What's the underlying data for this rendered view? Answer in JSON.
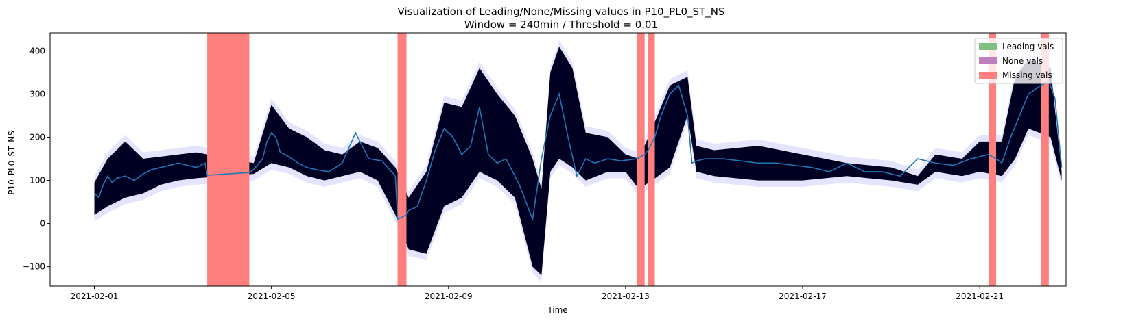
{
  "chart_data": {
    "type": "line",
    "title": "Visualization of Leading/None/Missing values in P10_PL0_ST_NS",
    "subtitle": "Window = 240min / Threshold = 0.01",
    "xlabel": "Time",
    "ylabel": "P10_PL0_ST_NS",
    "x_tick_labels": [
      "2021-02-01",
      "2021-02-05",
      "2021-02-09",
      "2021-02-13",
      "2021-02-17",
      "2021-02-21"
    ],
    "x_tick_days": [
      1,
      5,
      9,
      13,
      17,
      21
    ],
    "xlim_days": [
      0,
      22.95
    ],
    "ylim": [
      -145,
      442
    ],
    "y_ticks": [
      -100,
      0,
      100,
      200,
      300,
      400
    ],
    "y_tick_labels": [
      "−100",
      "0",
      "100",
      "200",
      "300",
      "400"
    ],
    "legend": {
      "placement": "top-right",
      "entries": [
        {
          "label": "Leading vals",
          "color": "#7fbf7f"
        },
        {
          "label": "None vals",
          "color": "#bf7fbf"
        },
        {
          "label": "Missing vals",
          "color": "#ff7f7f"
        }
      ]
    },
    "colors": {
      "raw": "#000022",
      "rolling_mean": "#1f77b4",
      "band": "#d8d8ff",
      "missing": "#ff7f7f"
    },
    "missing_spans_days": [
      [
        3.55,
        4.5
      ],
      [
        7.85,
        8.05
      ],
      [
        13.25,
        13.43
      ],
      [
        13.51,
        13.66
      ],
      [
        21.2,
        21.37
      ],
      [
        22.38,
        22.56
      ]
    ],
    "series": [
      {
        "name": "Rolling mean",
        "x_days": [
          1.0,
          1.1,
          1.2,
          1.3,
          1.4,
          1.5,
          1.7,
          1.9,
          2.1,
          2.3,
          2.5,
          2.7,
          2.9,
          3.1,
          3.3,
          3.5,
          3.55,
          4.5,
          4.6,
          4.8,
          4.9,
          5.0,
          5.1,
          5.2,
          5.4,
          5.6,
          5.8,
          6.0,
          6.3,
          6.6,
          6.9,
          7.2,
          7.5,
          7.8,
          7.85,
          8.05,
          8.1,
          8.3,
          8.5,
          8.7,
          8.9,
          9.1,
          9.3,
          9.5,
          9.7,
          9.9,
          10.1,
          10.3,
          10.6,
          10.9,
          11.1,
          11.3,
          11.5,
          11.7,
          11.9,
          12.1,
          12.3,
          12.6,
          12.9,
          13.25,
          13.43,
          13.51,
          13.66,
          13.8,
          14.0,
          14.2,
          14.4,
          14.5,
          14.6,
          14.8,
          15.2,
          15.6,
          16.0,
          16.4,
          16.8,
          17.2,
          17.6,
          18.0,
          18.4,
          18.8,
          19.2,
          19.6,
          20.0,
          20.4,
          20.8,
          21.2,
          21.37,
          21.5,
          21.7,
          21.9,
          22.1,
          22.38,
          22.56,
          22.7,
          22.85
        ],
        "y": [
          70,
          60,
          90,
          110,
          95,
          105,
          110,
          100,
          115,
          125,
          130,
          135,
          140,
          135,
          130,
          140,
          112,
          118,
          125,
          150,
          190,
          210,
          200,
          165,
          155,
          140,
          130,
          125,
          120,
          140,
          210,
          150,
          145,
          110,
          10,
          20,
          30,
          40,
          100,
          170,
          220,
          200,
          160,
          180,
          270,
          160,
          140,
          150,
          90,
          10,
          150,
          250,
          300,
          200,
          110,
          150,
          140,
          150,
          145,
          150,
          160,
          170,
          200,
          250,
          300,
          320,
          250,
          140,
          145,
          150,
          150,
          145,
          140,
          140,
          135,
          130,
          120,
          140,
          120,
          120,
          110,
          150,
          140,
          135,
          150,
          160,
          150,
          140,
          200,
          250,
          300,
          320,
          330,
          290,
          130
        ]
      },
      {
        "name": "Raw values",
        "note": "dense band of raw observations; given as [x_day, low, high] envelope",
        "envelope_days": [
          [
            1.0,
            20,
            95
          ],
          [
            1.3,
            40,
            150
          ],
          [
            1.7,
            60,
            190
          ],
          [
            2.1,
            70,
            150
          ],
          [
            2.5,
            90,
            155
          ],
          [
            2.9,
            100,
            160
          ],
          [
            3.3,
            105,
            165
          ],
          [
            4.6,
            115,
            140
          ],
          [
            5.0,
            140,
            275
          ],
          [
            5.4,
            130,
            220
          ],
          [
            5.8,
            110,
            200
          ],
          [
            6.2,
            100,
            170
          ],
          [
            6.6,
            110,
            160
          ],
          [
            7.0,
            120,
            190
          ],
          [
            7.4,
            100,
            175
          ],
          [
            7.8,
            20,
            130
          ],
          [
            8.1,
            -60,
            60
          ],
          [
            8.5,
            -70,
            120
          ],
          [
            8.9,
            40,
            280
          ],
          [
            9.3,
            60,
            270
          ],
          [
            9.7,
            120,
            360
          ],
          [
            10.1,
            100,
            300
          ],
          [
            10.5,
            60,
            250
          ],
          [
            10.9,
            -100,
            150
          ],
          [
            11.1,
            -120,
            80
          ],
          [
            11.3,
            120,
            350
          ],
          [
            11.5,
            150,
            410
          ],
          [
            11.8,
            130,
            360
          ],
          [
            12.1,
            100,
            210
          ],
          [
            12.6,
            120,
            200
          ],
          [
            13.0,
            120,
            160
          ],
          [
            13.3,
            80,
            150
          ],
          [
            13.6,
            100,
            220
          ],
          [
            14.0,
            130,
            320
          ],
          [
            14.4,
            250,
            340
          ],
          [
            14.6,
            120,
            180
          ],
          [
            15.0,
            110,
            170
          ],
          [
            16.0,
            100,
            180
          ],
          [
            17.0,
            100,
            160
          ],
          [
            18.0,
            110,
            140
          ],
          [
            19.0,
            100,
            130
          ],
          [
            19.6,
            90,
            110
          ],
          [
            20.0,
            120,
            160
          ],
          [
            20.6,
            110,
            150
          ],
          [
            21.0,
            120,
            190
          ],
          [
            21.5,
            110,
            190
          ],
          [
            21.8,
            150,
            340
          ],
          [
            22.1,
            220,
            380
          ],
          [
            22.6,
            200,
            360
          ],
          [
            22.85,
            100,
            120
          ]
        ]
      }
    ]
  }
}
